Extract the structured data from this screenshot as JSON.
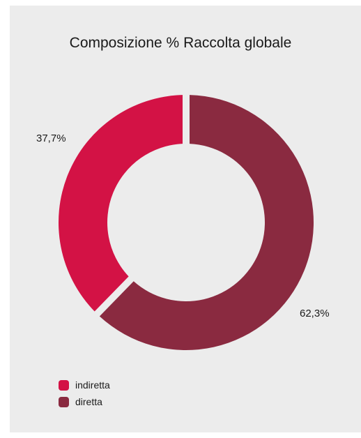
{
  "chart_data": {
    "type": "pie",
    "title": "Composizione % Raccolta globale",
    "series": [
      {
        "name": "indiretta",
        "value": 37.7,
        "label": "37,7%",
        "color": "#d31245"
      },
      {
        "name": "diretta",
        "value": 62.3,
        "label": "62,3%",
        "color": "#8a2a40"
      }
    ],
    "donut": true,
    "legend_position": "bottom-left"
  },
  "colors": {
    "background": "#ececec",
    "text": "#1a1a1a"
  }
}
